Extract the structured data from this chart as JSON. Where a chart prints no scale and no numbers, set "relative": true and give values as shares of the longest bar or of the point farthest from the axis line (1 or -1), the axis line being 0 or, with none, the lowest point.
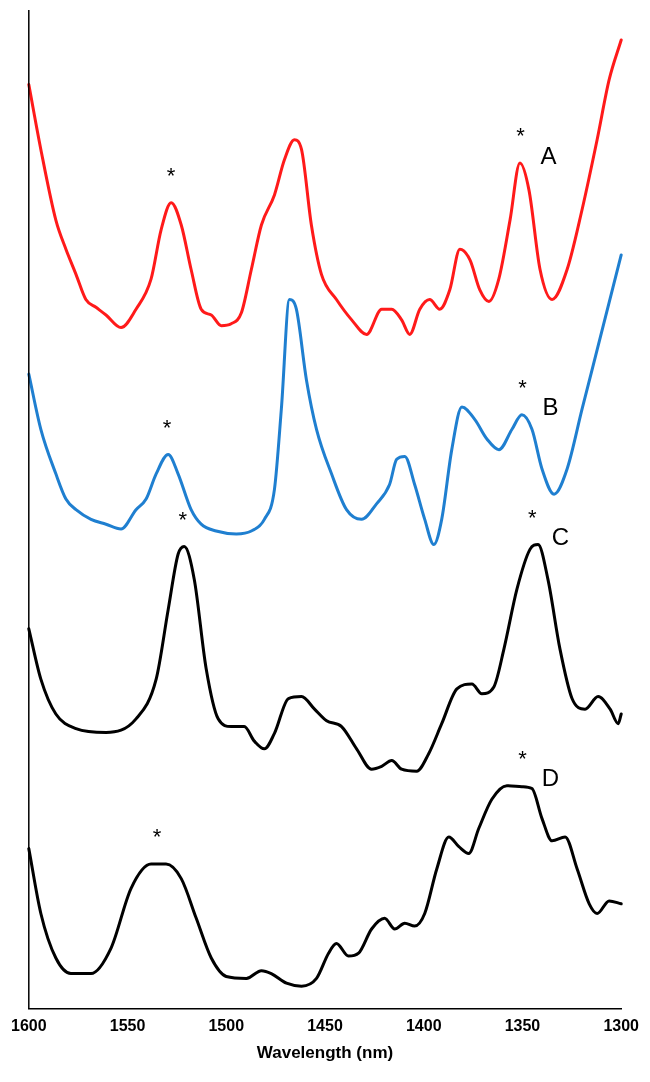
{
  "chart_data": {
    "type": "line",
    "relative": true,
    "xlabel": "Wavelength (nm)",
    "xlim": [
      1600,
      1300
    ],
    "xticks": [
      1600,
      1550,
      1500,
      1450,
      1400,
      1350,
      1300
    ],
    "grid": false,
    "legend": false,
    "marker": "none",
    "line_style": "solid",
    "series": [
      {
        "name": "A",
        "color": "#ff1a1a",
        "x": [
          1600,
          1593.9,
          1586.3,
          1581.2,
          1576.1,
          1571.1,
          1566,
          1560.9,
          1553.3,
          1545.7,
          1538.1,
          1533,
          1527.9,
          1522.8,
          1517.8,
          1512.7,
          1507.6,
          1502.5,
          1497.5,
          1492.4,
          1487.3,
          1482.2,
          1475.6,
          1470.6,
          1465.5,
          1461.9,
          1456.9,
          1451.8,
          1444.2,
          1436.5,
          1428.9,
          1421.3,
          1416.2,
          1411.2,
          1407.1,
          1402,
          1397,
          1391.9,
          1386.8,
          1381.7,
          1376.6,
          1371.6,
          1367,
          1362,
          1356.3,
          1351.3,
          1346.7,
          1341.1,
          1335,
          1327.4,
          1319.8,
          1312.2,
          1306.1,
          1300
        ],
        "values": [
          0.954,
          0.887,
          0.814,
          0.784,
          0.758,
          0.732,
          0.724,
          0.716,
          0.703,
          0.722,
          0.753,
          0.804,
          0.832,
          0.809,
          0.763,
          0.722,
          0.716,
          0.705,
          0.707,
          0.718,
          0.763,
          0.809,
          0.84,
          0.876,
          0.897,
          0.887,
          0.809,
          0.758,
          0.732,
          0.711,
          0.696,
          0.722,
          0.722,
          0.711,
          0.696,
          0.722,
          0.732,
          0.722,
          0.742,
          0.784,
          0.773,
          0.742,
          0.73,
          0.753,
          0.814,
          0.873,
          0.845,
          0.763,
          0.732,
          0.763,
          0.825,
          0.897,
          0.959,
          1.0
        ]
      },
      {
        "name": "B",
        "color": "#1f7fd0",
        "x": [
          1600,
          1593.9,
          1586.3,
          1581.2,
          1576.1,
          1568.5,
          1560.9,
          1553.3,
          1545.7,
          1540.6,
          1535.5,
          1529.4,
          1524.4,
          1517.8,
          1512.7,
          1505.1,
          1494.9,
          1487.3,
          1480.7,
          1475.6,
          1472.1,
          1468,
          1464.5,
          1459.4,
          1454.3,
          1446.7,
          1439.1,
          1431.5,
          1423.9,
          1417.3,
          1413.7,
          1409.6,
          1404.6,
          1399.5,
          1394.9,
          1390.9,
          1385.8,
          1380.7,
          1374.1,
          1368,
          1361.9,
          1355.3,
          1350.3,
          1345.2,
          1340.1,
          1334,
          1327.4,
          1319.8,
          1312.2,
          1300
        ],
        "values": [
          0.655,
          0.598,
          0.552,
          0.526,
          0.515,
          0.505,
          0.5,
          0.495,
          0.515,
          0.526,
          0.552,
          0.572,
          0.552,
          0.515,
          0.5,
          0.493,
          0.49,
          0.493,
          0.505,
          0.536,
          0.619,
          0.732,
          0.722,
          0.649,
          0.598,
          0.552,
          0.515,
          0.505,
          0.521,
          0.541,
          0.567,
          0.57,
          0.541,
          0.505,
          0.479,
          0.505,
          0.577,
          0.621,
          0.608,
          0.588,
          0.577,
          0.598,
          0.613,
          0.598,
          0.557,
          0.531,
          0.557,
          0.619,
          0.68,
          0.778
        ]
      },
      {
        "name": "C",
        "color": "#000000",
        "x": [
          1600,
          1593.9,
          1586.3,
          1576.1,
          1560.9,
          1545.7,
          1535.5,
          1529.4,
          1524.4,
          1521.3,
          1516.2,
          1510.2,
          1504.1,
          1497.5,
          1490.9,
          1485.8,
          1480.7,
          1475.6,
          1468.5,
          1461.9,
          1455.3,
          1449.2,
          1441.6,
          1434,
          1426.4,
          1421.3,
          1416.2,
          1411.2,
          1403.6,
          1397.5,
          1390.9,
          1383.2,
          1375.6,
          1370.6,
          1364.5,
          1359.4,
          1352.8,
          1346.2,
          1342.1,
          1337.1,
          1331,
          1324.9,
          1318.3,
          1311.7,
          1305.6,
          1301.5,
          1300
        ],
        "values": [
          0.392,
          0.34,
          0.304,
          0.289,
          0.285,
          0.299,
          0.34,
          0.412,
          0.469,
          0.477,
          0.443,
          0.351,
          0.299,
          0.291,
          0.291,
          0.276,
          0.268,
          0.284,
          0.32,
          0.322,
          0.309,
          0.297,
          0.291,
          0.268,
          0.247,
          0.25,
          0.256,
          0.247,
          0.245,
          0.263,
          0.294,
          0.33,
          0.335,
          0.325,
          0.332,
          0.371,
          0.433,
          0.474,
          0.479,
          0.443,
          0.371,
          0.32,
          0.309,
          0.322,
          0.309,
          0.294,
          0.304
        ]
      },
      {
        "name": "D",
        "color": "#000000",
        "x": [
          1600,
          1593.9,
          1586.3,
          1578.7,
          1568.5,
          1558.4,
          1548.2,
          1538.1,
          1530.5,
          1522.8,
          1515.2,
          1507.6,
          1500,
          1489.8,
          1482.2,
          1477.2,
          1469.5,
          1461.9,
          1454.3,
          1448.2,
          1444.2,
          1438.1,
          1433,
          1426.4,
          1419.8,
          1414.7,
          1409.6,
          1404.6,
          1399.5,
          1393.4,
          1387.3,
          1382.2,
          1377.2,
          1372.1,
          1365.5,
          1357.9,
          1350.3,
          1345.2,
          1340.1,
          1335,
          1328.4,
          1322.3,
          1316.2,
          1312.2,
          1306.1,
          1300
        ],
        "values": [
          0.165,
          0.098,
          0.052,
          0.036,
          0.036,
          0.062,
          0.124,
          0.149,
          0.149,
          0.134,
          0.093,
          0.052,
          0.033,
          0.031,
          0.039,
          0.036,
          0.026,
          0.023,
          0.031,
          0.057,
          0.067,
          0.054,
          0.057,
          0.082,
          0.093,
          0.082,
          0.088,
          0.085,
          0.098,
          0.144,
          0.177,
          0.167,
          0.16,
          0.186,
          0.216,
          0.23,
          0.229,
          0.227,
          0.196,
          0.173,
          0.177,
          0.144,
          0.108,
          0.098,
          0.111,
          0.108
        ]
      }
    ],
    "annotations": [
      {
        "text": "*",
        "x": 1528,
        "y": 0.832
      },
      {
        "text": "*",
        "x": 1351,
        "y": 0.873
      },
      {
        "text": "*",
        "x": 1530,
        "y": 0.572
      },
      {
        "text": "*",
        "x": 1350,
        "y": 0.613
      },
      {
        "text": "*",
        "x": 1522,
        "y": 0.477
      },
      {
        "text": "*",
        "x": 1345,
        "y": 0.479
      },
      {
        "text": "*",
        "x": 1535,
        "y": 0.149
      },
      {
        "text": "*",
        "x": 1350,
        "y": 0.23
      }
    ]
  }
}
